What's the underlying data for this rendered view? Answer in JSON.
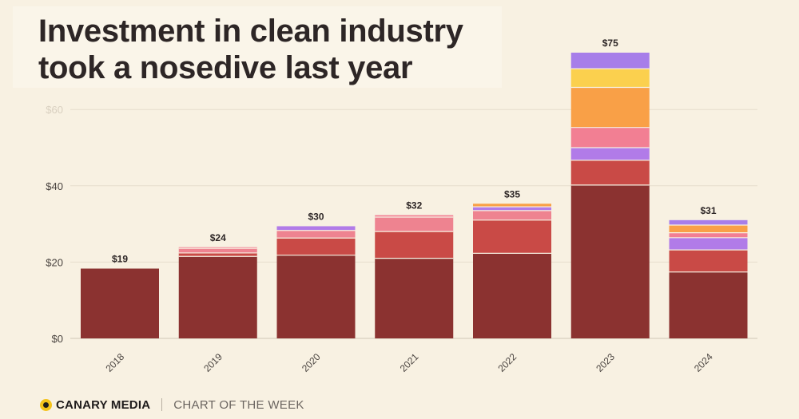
{
  "title": {
    "line1": "Investment in clean industry",
    "line2": "took a nosedive last year"
  },
  "footer": {
    "brand": "CANARY MEDIA",
    "tagline": "CHART OF THE WEEK"
  },
  "chart_data": {
    "type": "bar",
    "stacked": true,
    "title": "Investment in clean industry took a nosedive last year",
    "xlabel": "",
    "ylabel": "",
    "ylim": [
      0,
      75
    ],
    "yticks": [
      {
        "value": 0,
        "label": "$0"
      },
      {
        "value": 20,
        "label": "$20"
      },
      {
        "value": 40,
        "label": "$40"
      },
      {
        "value": 60,
        "label": "$60"
      }
    ],
    "categories": [
      "2018",
      "2019",
      "2020",
      "2021",
      "2022",
      "2023",
      "2024"
    ],
    "totals_labels": [
      "$19",
      "$24",
      "$30",
      "$32",
      "$35",
      "$75",
      "$31"
    ],
    "series": [
      {
        "color": "#8b3230",
        "values": [
          18.3,
          21.5,
          21.8,
          21.0,
          22.3,
          40.2,
          17.4
        ]
      },
      {
        "color": "#c94a46",
        "values": [
          0,
          0.9,
          4.5,
          7.0,
          8.7,
          6.5,
          5.8
        ]
      },
      {
        "color": "#ee8390",
        "values": [
          0,
          1.2,
          2.0,
          3.8,
          2.5,
          0,
          0
        ]
      },
      {
        "color": "#b17be8",
        "values": [
          0,
          0,
          1.1,
          0,
          1.0,
          3.3,
          3.2
        ]
      },
      {
        "color": "#f27f93",
        "values": [
          0,
          0.3,
          0,
          0.5,
          0,
          5.3,
          1.3
        ]
      },
      {
        "color": "#f9a047",
        "values": [
          0,
          0,
          0,
          0,
          0.8,
          10.5,
          2.0
        ]
      },
      {
        "color": "#fbd04e",
        "values": [
          0,
          0,
          0,
          0,
          0,
          4.9,
          0
        ]
      },
      {
        "color": "#a77ee9",
        "values": [
          0,
          0,
          0,
          0,
          0,
          4.2,
          1.3
        ]
      }
    ]
  }
}
